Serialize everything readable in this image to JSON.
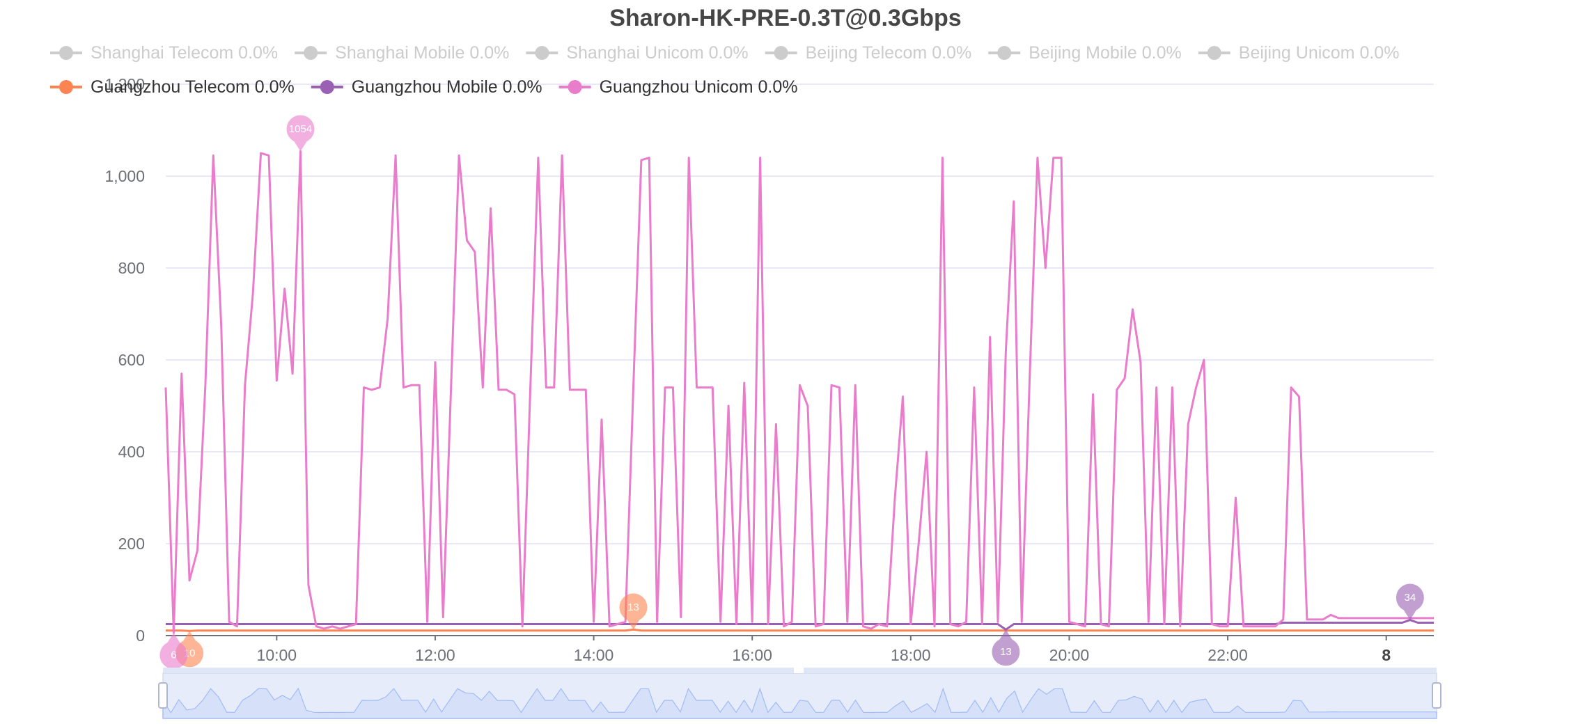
{
  "chart_data": {
    "type": "line",
    "title": "Sharon-HK-PRE-0.3T@0.3Gbps",
    "legend_inactive": [
      "Shanghai Telecom 0.0%",
      "Shanghai Mobile 0.0%",
      "Shanghai Unicom 0.0%",
      "Beijing Telecom 0.0%",
      "Beijing Mobile 0.0%",
      "Beijing Unicom 0.0%"
    ],
    "x": [
      8.6,
      8.7,
      8.8,
      8.9,
      9.0,
      9.1,
      9.2,
      9.3,
      9.4,
      9.5,
      9.6,
      9.7,
      9.8,
      9.9,
      10.0,
      10.1,
      10.2,
      10.3,
      10.4,
      10.5,
      10.6,
      10.7,
      10.8,
      10.9,
      11.0,
      11.1,
      11.2,
      11.3,
      11.4,
      11.5,
      11.6,
      11.7,
      11.8,
      11.9,
      12.0,
      12.1,
      12.2,
      12.3,
      12.4,
      12.5,
      12.6,
      12.7,
      12.8,
      12.9,
      13.0,
      13.1,
      13.2,
      13.3,
      13.4,
      13.5,
      13.6,
      13.7,
      13.8,
      13.9,
      14.0,
      14.1,
      14.2,
      14.3,
      14.4,
      14.5,
      14.6,
      14.7,
      14.8,
      14.9,
      15.0,
      15.1,
      15.2,
      15.3,
      15.4,
      15.5,
      15.6,
      15.7,
      15.8,
      15.9,
      16.0,
      16.1,
      16.2,
      16.3,
      16.4,
      16.5,
      16.6,
      16.7,
      16.8,
      16.9,
      17.0,
      17.1,
      17.2,
      17.3,
      17.4,
      17.5,
      17.6,
      17.7,
      17.8,
      17.9,
      18.0,
      18.1,
      18.2,
      18.3,
      18.4,
      18.5,
      18.6,
      18.7,
      18.8,
      18.9,
      19.0,
      19.1,
      19.2,
      19.3,
      19.4,
      19.5,
      19.6,
      19.7,
      19.8,
      19.9,
      20.0,
      20.1,
      20.2,
      20.3,
      20.4,
      20.5,
      20.6,
      20.7,
      20.8,
      20.9,
      21.0,
      21.1,
      21.2,
      21.3,
      21.4,
      21.5,
      21.6,
      21.7,
      21.8,
      21.9,
      22.0,
      22.1,
      22.2,
      22.3,
      22.4,
      22.5,
      22.6,
      22.7,
      22.8,
      22.9,
      23.0,
      23.1,
      23.2,
      23.3,
      23.4,
      23.5,
      23.6,
      23.7,
      23.8,
      23.9,
      24.0,
      24.1,
      24.2,
      24.3,
      24.4,
      24.5,
      24.6
    ],
    "series": [
      {
        "name": "Guangzhou Telecom 0.0%",
        "color": "#fc8452",
        "mark_max": 59,
        "mark_min": 3,
        "values": [
          11,
          11,
          11,
          10,
          11,
          11,
          11,
          11,
          11,
          11,
          11,
          11,
          11,
          11,
          11,
          11,
          11,
          11,
          11,
          11,
          11,
          11,
          11,
          11,
          11,
          11,
          11,
          11,
          11,
          11,
          11,
          11,
          11,
          11,
          11,
          11,
          11,
          11,
          11,
          11,
          11,
          11,
          11,
          11,
          11,
          11,
          11,
          11,
          11,
          11,
          11,
          11,
          11,
          11,
          11,
          11,
          11,
          11,
          11,
          13,
          11,
          11,
          11,
          11,
          11,
          11,
          11,
          11,
          11,
          11,
          11,
          11,
          11,
          11,
          11,
          11,
          11,
          11,
          11,
          11,
          11,
          11,
          11,
          11,
          11,
          11,
          11,
          11,
          11,
          11,
          11,
          11,
          11,
          11,
          11,
          11,
          11,
          11,
          11,
          11,
          11,
          11,
          11,
          11,
          11,
          11,
          11,
          11,
          11,
          11,
          11,
          11,
          11,
          11,
          11,
          11,
          11,
          11,
          11,
          11,
          11,
          11,
          11,
          11,
          11,
          11,
          11,
          11,
          11,
          11,
          11,
          11,
          11,
          11,
          11,
          11,
          11,
          11,
          11,
          11,
          11,
          11,
          11,
          11,
          11,
          11,
          11,
          11,
          11,
          11,
          11,
          11,
          11,
          11,
          11,
          11,
          11,
          11,
          11,
          11,
          11
        ]
      },
      {
        "name": "Guangzhou Mobile 0.0%",
        "color": "#9a60b4",
        "mark_max": 157,
        "mark_min": 106,
        "values": [
          25,
          25,
          25,
          25,
          25,
          25,
          25,
          25,
          25,
          25,
          25,
          25,
          25,
          25,
          25,
          25,
          25,
          25,
          25,
          25,
          25,
          25,
          25,
          25,
          25,
          25,
          25,
          25,
          25,
          25,
          25,
          25,
          25,
          25,
          25,
          25,
          25,
          25,
          25,
          25,
          25,
          25,
          25,
          25,
          25,
          25,
          25,
          25,
          25,
          25,
          25,
          25,
          25,
          25,
          25,
          25,
          25,
          25,
          25,
          25,
          25,
          25,
          25,
          25,
          25,
          25,
          25,
          25,
          25,
          25,
          25,
          25,
          25,
          25,
          25,
          25,
          25,
          25,
          25,
          25,
          25,
          25,
          25,
          25,
          25,
          25,
          25,
          25,
          25,
          25,
          25,
          25,
          25,
          25,
          25,
          25,
          25,
          25,
          25,
          25,
          25,
          25,
          25,
          25,
          25,
          25,
          13,
          25,
          25,
          25,
          25,
          25,
          25,
          25,
          25,
          25,
          25,
          25,
          25,
          25,
          25,
          25,
          25,
          25,
          25,
          25,
          25,
          25,
          25,
          25,
          25,
          25,
          25,
          25,
          25,
          25,
          25,
          25,
          25,
          25,
          25,
          28,
          28,
          28,
          28,
          28,
          28,
          28,
          28,
          28,
          28,
          28,
          28,
          28,
          28,
          28,
          28,
          34,
          28,
          28,
          28
        ]
      },
      {
        "name": "Guangzhou Unicom 0.0%",
        "color": "#ea7ccc",
        "mark_max": 17,
        "mark_min": 1,
        "values": [
          540,
          6,
          570,
          120,
          185,
          545,
          1045,
          675,
          30,
          20,
          545,
          745,
          1050,
          1045,
          555,
          755,
          570,
          1054,
          110,
          20,
          15,
          20,
          15,
          20,
          25,
          540,
          535,
          540,
          690,
          1045,
          540,
          545,
          545,
          30,
          595,
          40,
          540,
          1045,
          860,
          835,
          540,
          930,
          535,
          535,
          525,
          20,
          535,
          1040,
          540,
          540,
          1045,
          535,
          535,
          535,
          30,
          470,
          20,
          25,
          30,
          540,
          1035,
          1040,
          30,
          540,
          540,
          40,
          1040,
          540,
          540,
          540,
          30,
          500,
          25,
          550,
          30,
          1040,
          25,
          460,
          20,
          30,
          545,
          500,
          20,
          25,
          545,
          540,
          30,
          545,
          20,
          15,
          25,
          20,
          300,
          520,
          25,
          200,
          400,
          20,
          1040,
          25,
          20,
          30,
          540,
          25,
          650,
          30,
          620,
          945,
          30,
          560,
          1040,
          800,
          1040,
          1040,
          30,
          25,
          20,
          525,
          25,
          20,
          535,
          560,
          710,
          595,
          30,
          540,
          25,
          540,
          20,
          460,
          540,
          600,
          25,
          20,
          20,
          300,
          20,
          20,
          20,
          20,
          20,
          35,
          540,
          520,
          35,
          35,
          35,
          45,
          38,
          38,
          38,
          38,
          38,
          38,
          38,
          38,
          38,
          38,
          38,
          38,
          38
        ]
      }
    ],
    "xlim": [
      8.6,
      24.6
    ],
    "xticks": [
      {
        "value": 10,
        "label": "10:00"
      },
      {
        "value": 12,
        "label": "12:00"
      },
      {
        "value": 14,
        "label": "14:00"
      },
      {
        "value": 16,
        "label": "16:00"
      },
      {
        "value": 18,
        "label": "18:00"
      },
      {
        "value": 20,
        "label": "20:00"
      },
      {
        "value": 22,
        "label": "22:00"
      },
      {
        "value": 24,
        "label": "8"
      }
    ],
    "emphasized_xticks": [
      7
    ],
    "ylim": [
      0,
      1200
    ],
    "yticks": [
      0,
      200,
      400,
      600,
      800,
      {
        "value": 1000,
        "label": "1,000"
      },
      {
        "value": 1200,
        "label": "1,200"
      }
    ],
    "grid": true,
    "data_zoom": true
  }
}
